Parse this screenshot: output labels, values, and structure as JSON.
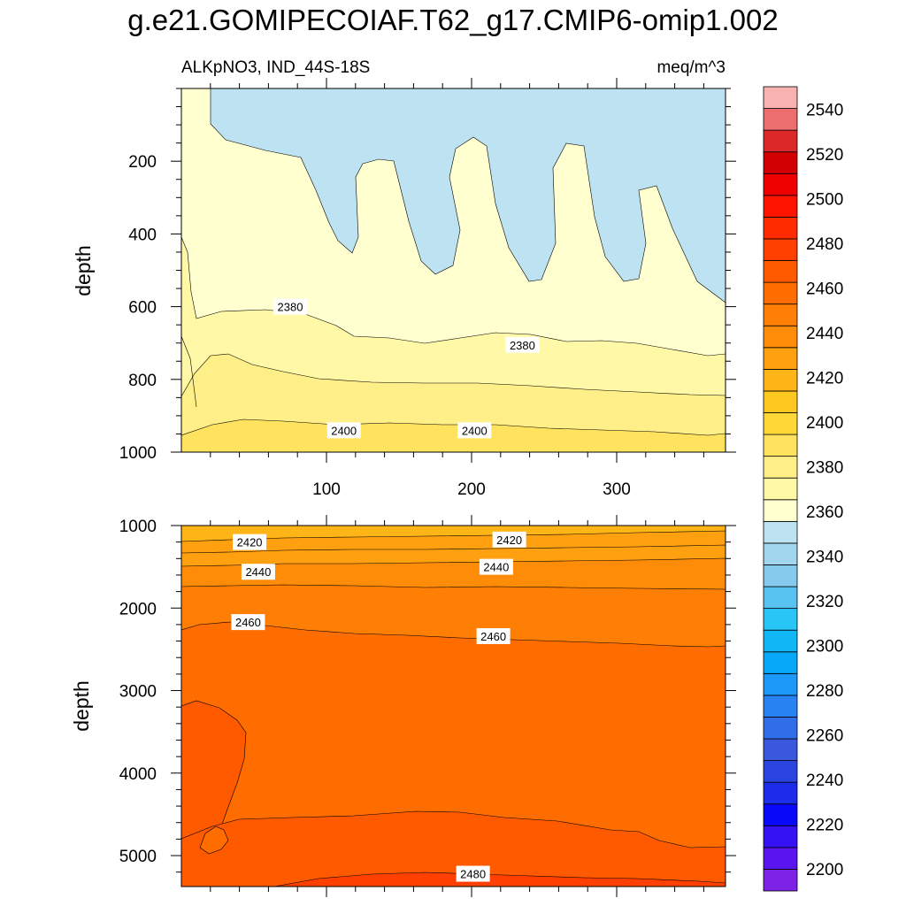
{
  "title": "g.e21.GOMIPECOIAF.T62_g17.CMIP6-omip1.002",
  "subtitle_left": "ALKpNO3, IND_44S-18S",
  "subtitle_right": "meq/m^3",
  "chart_data": {
    "type": "contour",
    "variable": "ALKpNO3",
    "region": "IND_44S-18S",
    "units": "meq/m^3",
    "x": {
      "range": [
        0,
        375
      ],
      "ticks": [
        100,
        200,
        300
      ]
    },
    "panels": [
      {
        "name": "upper",
        "ylabel": "depth",
        "ylim": [
          0,
          1000
        ],
        "y_ticks": [
          200,
          400,
          600,
          800,
          1000
        ],
        "contour_labels": [
          {
            "text": "2380",
            "x": 75,
            "y": 600
          },
          {
            "text": "2380",
            "x": 235,
            "y": 705
          },
          {
            "text": "2400",
            "x": 112,
            "y": 940
          },
          {
            "text": "2400",
            "x": 202,
            "y": 940
          }
        ]
      },
      {
        "name": "lower",
        "ylabel": "depth",
        "ylim": [
          1000,
          5375
        ],
        "y_ticks": [
          1000,
          2000,
          3000,
          4000,
          5000
        ],
        "contour_labels": [
          {
            "text": "2420",
            "x": 47,
            "y": 1200
          },
          {
            "text": "2420",
            "x": 226,
            "y": 1170
          },
          {
            "text": "2440",
            "x": 53,
            "y": 1560
          },
          {
            "text": "2440",
            "x": 217,
            "y": 1500
          },
          {
            "text": "2460",
            "x": 46,
            "y": 2170
          },
          {
            "text": "2460",
            "x": 215,
            "y": 2340
          },
          {
            "text": "2480",
            "x": 201,
            "y": 5220
          }
        ]
      }
    ],
    "colorbar": {
      "levels": [
        2190,
        2200,
        2210,
        2220,
        2230,
        2240,
        2250,
        2260,
        2270,
        2280,
        2290,
        2300,
        2310,
        2320,
        2330,
        2340,
        2350,
        2360,
        2370,
        2380,
        2390,
        2400,
        2410,
        2420,
        2430,
        2440,
        2450,
        2460,
        2470,
        2480,
        2490,
        2500,
        2510,
        2520,
        2530,
        2540,
        2550
      ],
      "labels": [
        2200,
        2220,
        2240,
        2260,
        2280,
        2300,
        2320,
        2340,
        2360,
        2380,
        2400,
        2420,
        2440,
        2460,
        2480,
        2500,
        2520,
        2540
      ],
      "colors": [
        "#7e22e6",
        "#5a14f0",
        "#3412f4",
        "#0a08f8",
        "#1c2ce8",
        "#2a44e0",
        "#3a58de",
        "#2f6ee8",
        "#2882f2",
        "#1c98f8",
        "#08a8f8",
        "#10b8f8",
        "#28c6f6",
        "#58c2f0",
        "#84cbee",
        "#a2d6ee",
        "#bde2f2",
        "#ffffd0",
        "#fff8a6",
        "#ffef88",
        "#ffe35e",
        "#ffd838",
        "#ffc820",
        "#ffb418",
        "#ffa010",
        "#ff8c08",
        "#ff7e04",
        "#ff6c00",
        "#ff5a00",
        "#ff4000",
        "#ff2c00",
        "#ff1400",
        "#ee0000",
        "#d20000",
        "#dc2828",
        "#ec6e6e",
        "#f8b2b2"
      ]
    }
  }
}
